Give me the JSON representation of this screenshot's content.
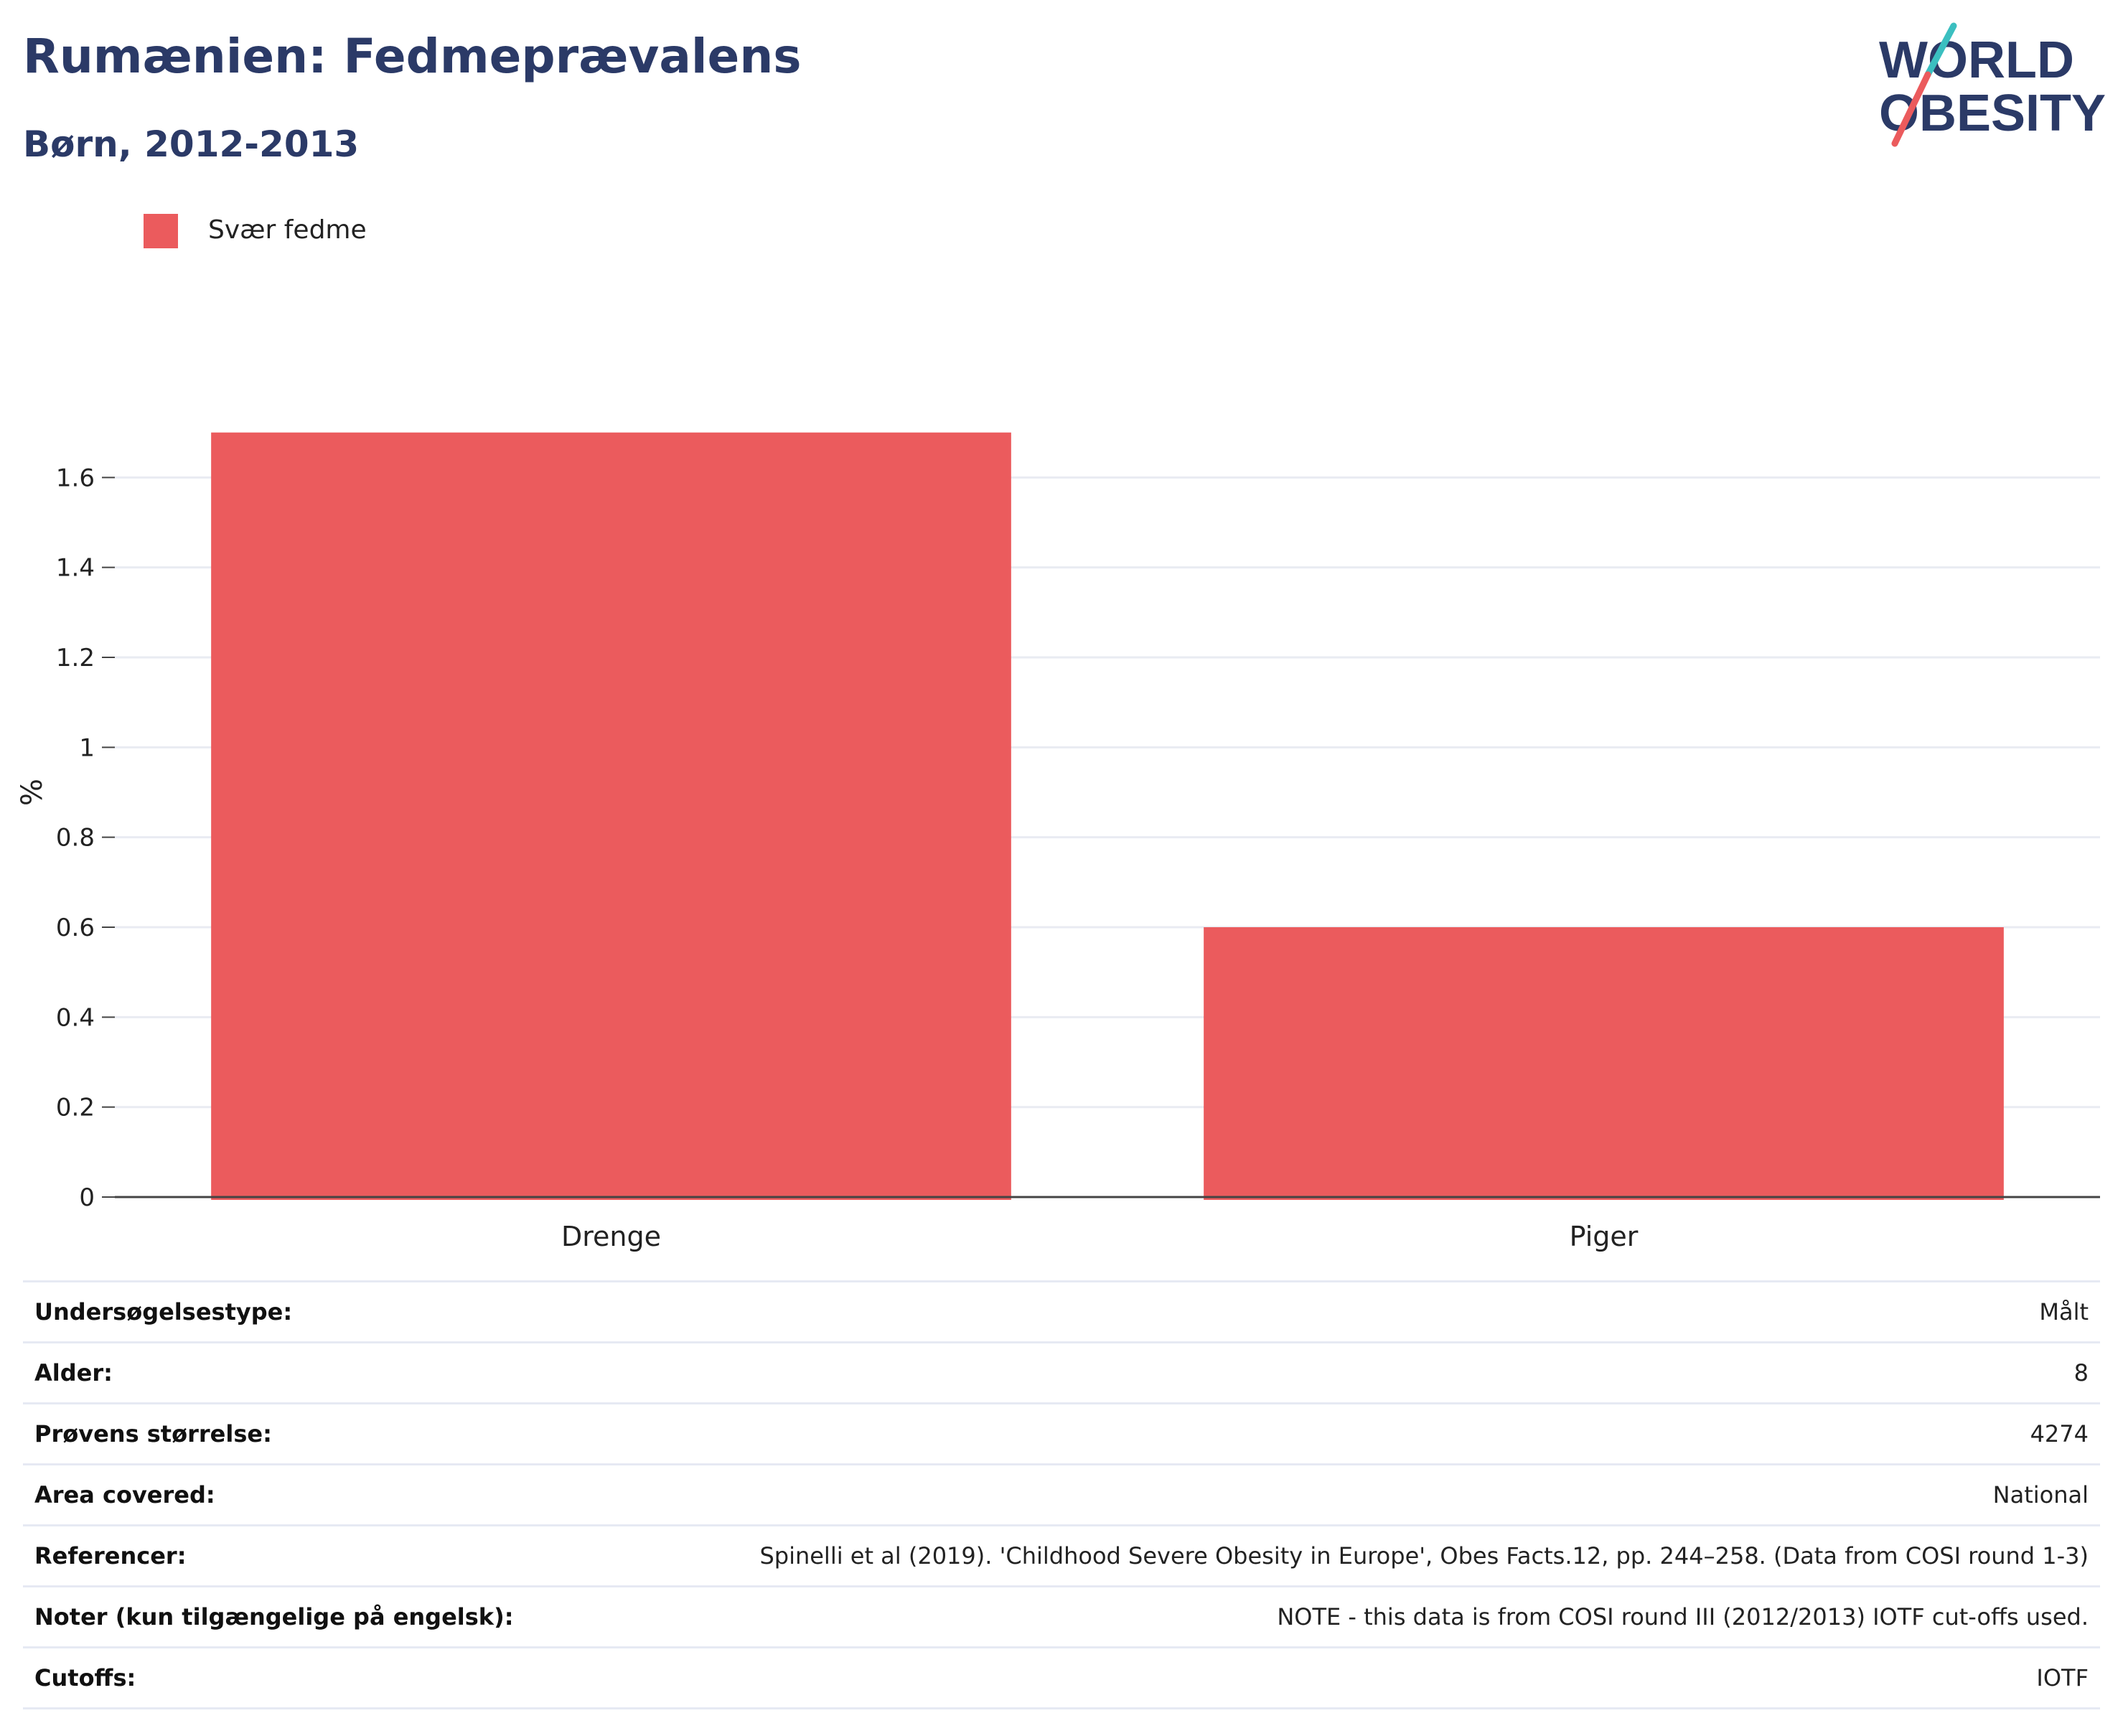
{
  "header": {
    "title": "Rumænien: Fedmeprævalens",
    "subtitle": "Børn, 2012-2013"
  },
  "logo": {
    "line1": "WORLD",
    "line2": "OBESITY",
    "colors": {
      "text": "#2b3a67",
      "slash_top": "#3bbfc0",
      "slash_bottom": "#eb5b5d"
    }
  },
  "legend": {
    "items": [
      {
        "label": "Svær fedme",
        "color": "#eb5b5d"
      }
    ]
  },
  "chart_data": {
    "type": "bar",
    "categories": [
      "Drenge",
      "Piger"
    ],
    "series": [
      {
        "name": "Svær fedme",
        "values": [
          1.7,
          0.6
        ],
        "color": "#eb5b5d"
      }
    ],
    "ylabel": "%",
    "xlabel": "",
    "ylim": [
      0,
      1.8
    ],
    "yticks": [
      0,
      0.2,
      0.4,
      0.6,
      0.8,
      1,
      1.2,
      1.4,
      1.6
    ],
    "ytick_labels": [
      "0",
      "0.2",
      "0.4",
      "0.6",
      "0.8",
      "1",
      "1.2",
      "1.4",
      "1.6"
    ],
    "grid": true,
    "legend_position": "top-left"
  },
  "info_table": {
    "rows": [
      {
        "label": "Undersøgelsestype:",
        "value": "Målt"
      },
      {
        "label": "Alder:",
        "value": "8"
      },
      {
        "label": "Prøvens størrelse:",
        "value": "4274"
      },
      {
        "label": "Area covered:",
        "value": "National"
      },
      {
        "label": "Referencer:",
        "value": "Spinelli et al (2019). 'Childhood Severe Obesity in Europe', Obes Facts.12, pp. 244–258. (Data from COSI round 1-3)"
      },
      {
        "label": "Noter (kun tilgængelige på engelsk):",
        "value": "NOTE - this data is from COSI round III (2012/2013) IOTF cut-offs used."
      },
      {
        "label": "Cutoffs:",
        "value": "IOTF"
      }
    ]
  }
}
